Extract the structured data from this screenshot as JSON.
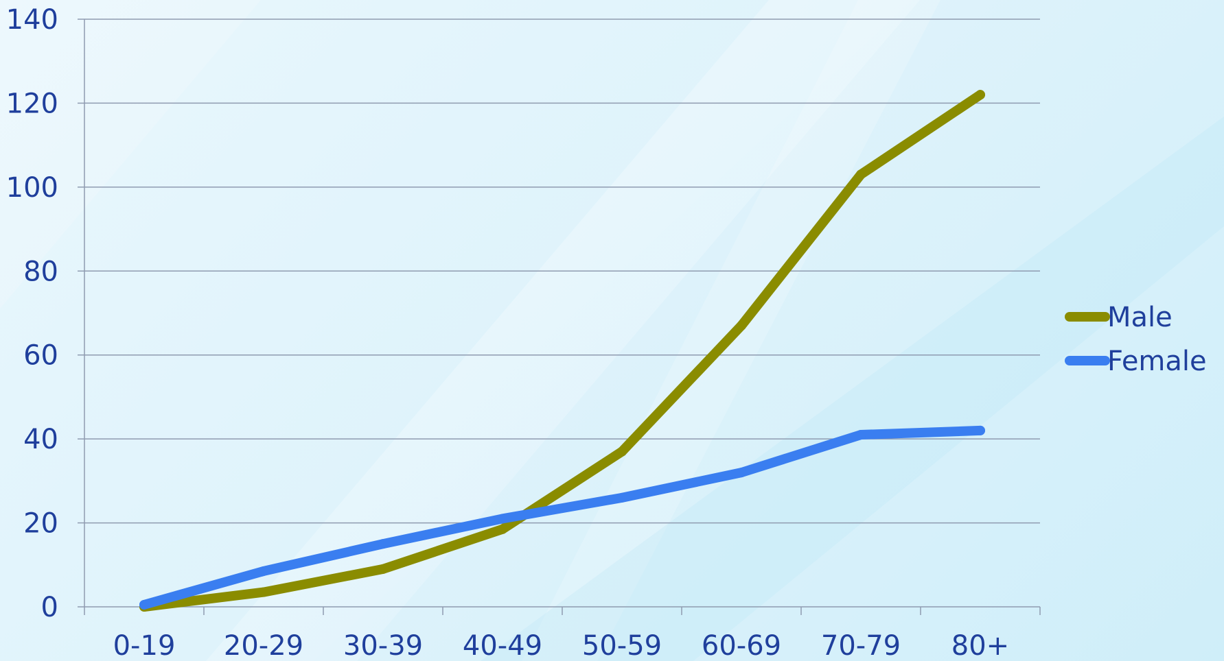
{
  "chart_data": {
    "type": "line",
    "title": "",
    "xlabel": "",
    "ylabel": "",
    "categories": [
      "0-19",
      "20-29",
      "30-39",
      "40-49",
      "50-59",
      "60-69",
      "70-79",
      "80+"
    ],
    "ylim": [
      0,
      140
    ],
    "yticks": [
      0,
      20,
      40,
      60,
      80,
      100,
      120,
      140
    ],
    "grid": true,
    "legend": "right",
    "series": [
      {
        "name": "Male",
        "color": "#8a8c00",
        "values": [
          0,
          3.5,
          9,
          18.5,
          37,
          67,
          103,
          122
        ]
      },
      {
        "name": "Female",
        "color": "#3a7ef0",
        "values": [
          0.5,
          8.5,
          15,
          21,
          26,
          32,
          41,
          42
        ]
      }
    ]
  }
}
